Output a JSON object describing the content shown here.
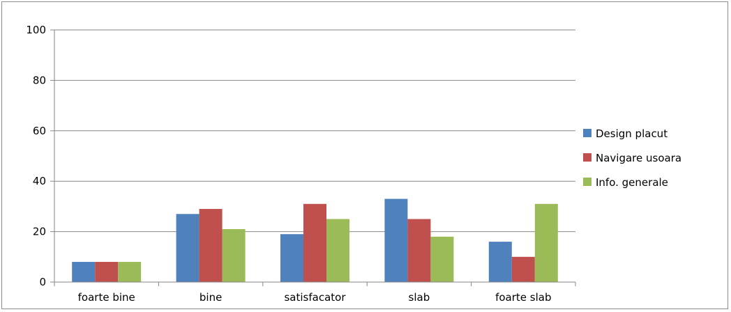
{
  "chart_data": {
    "type": "bar",
    "title": "",
    "xlabel": "",
    "ylabel": "",
    "categories": [
      "foarte bine",
      "bine",
      "satisfacator",
      "slab",
      "foarte slab"
    ],
    "series": [
      {
        "name": "Design placut",
        "values": [
          8,
          27,
          19,
          33,
          16
        ],
        "color": "#4f81bd"
      },
      {
        "name": "Navigare usoara",
        "values": [
          8,
          29,
          31,
          25,
          10
        ],
        "color": "#c0504d"
      },
      {
        "name": "Info. generale",
        "values": [
          8,
          21,
          25,
          18,
          31
        ],
        "color": "#9bbb59"
      }
    ],
    "ylim": [
      0,
      100
    ],
    "yticks": [
      0,
      20,
      40,
      60,
      80,
      100
    ],
    "grid": true,
    "legend": "right",
    "gridline_color": "#868686",
    "axis_color": "#868686"
  }
}
